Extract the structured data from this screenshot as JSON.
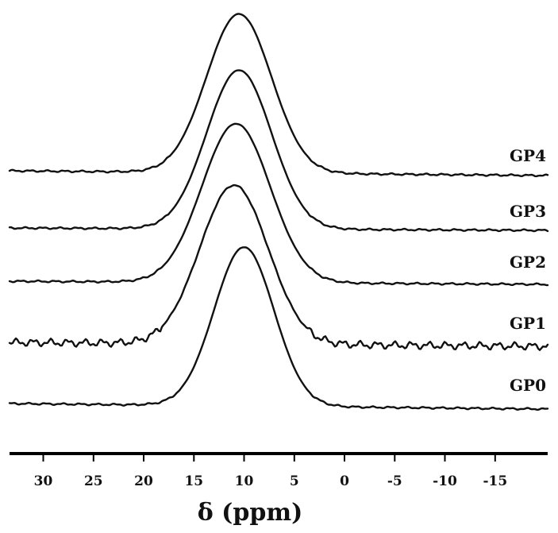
{
  "chart_data": {
    "type": "line",
    "title": "",
    "xlabel": "δ (ppm)",
    "ylabel": "",
    "x_reversed": true,
    "xlim": [
      34,
      -20
    ],
    "xticks": [
      30,
      25,
      20,
      15,
      10,
      5,
      0,
      -5,
      -10,
      -15
    ],
    "grid": false,
    "legend": "labels at right end of each trace",
    "peak_shape": "gaussian",
    "colors": {
      "trace": "#111111",
      "axis": "#000000",
      "baseline_grey": "#444444"
    },
    "series": [
      {
        "name": "GP4",
        "peak_ppm": 10.5,
        "fwhm_ppm": 7.6,
        "relative_intensity": 1.0,
        "noise": "low"
      },
      {
        "name": "GP3",
        "peak_ppm": 10.5,
        "fwhm_ppm": 7.6,
        "relative_intensity": 1.0,
        "noise": "low"
      },
      {
        "name": "GP2",
        "peak_ppm": 10.8,
        "fwhm_ppm": 8.0,
        "relative_intensity": 1.0,
        "noise": "low"
      },
      {
        "name": "GP1",
        "peak_ppm": 11.0,
        "fwhm_ppm": 8.0,
        "relative_intensity": 1.0,
        "noise": "high"
      },
      {
        "name": "GP0",
        "peak_ppm": 10.0,
        "fwhm_ppm": 7.0,
        "relative_intensity": 1.0,
        "noise": "low"
      }
    ]
  }
}
